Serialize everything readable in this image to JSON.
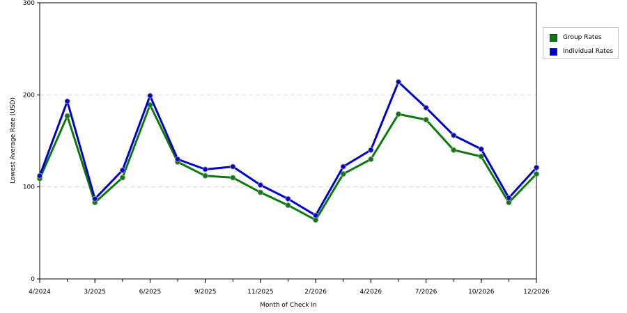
{
  "chart_data": {
    "type": "line",
    "title": "",
    "xlabel": "Month of Check In",
    "ylabel": "Lowest Average Rate (USD)",
    "ylim": [
      0,
      300
    ],
    "yticks": [
      "0",
      "100",
      "200",
      "300"
    ],
    "xtick_labels": [
      "4/2024",
      "3/2025",
      "6/2025",
      "9/2025",
      "11/2025",
      "2/2026",
      "4/2026",
      "7/2026",
      "10/2026",
      "12/2026"
    ],
    "grid": "horizontal dashed",
    "legend_position": "right",
    "series": [
      {
        "name": "Group Rates",
        "color": "#0a7a0a",
        "values": [
          109,
          177,
          83,
          110,
          189,
          127,
          112,
          110,
          94,
          80,
          64,
          114,
          130,
          179,
          173,
          140,
          133,
          83,
          114
        ]
      },
      {
        "name": "Individual Rates",
        "color": "#0000cc",
        "values": [
          112,
          193,
          87,
          118,
          199,
          130,
          119,
          122,
          102,
          87,
          69,
          122,
          140,
          214,
          186,
          156,
          141,
          88,
          121
        ]
      }
    ]
  }
}
